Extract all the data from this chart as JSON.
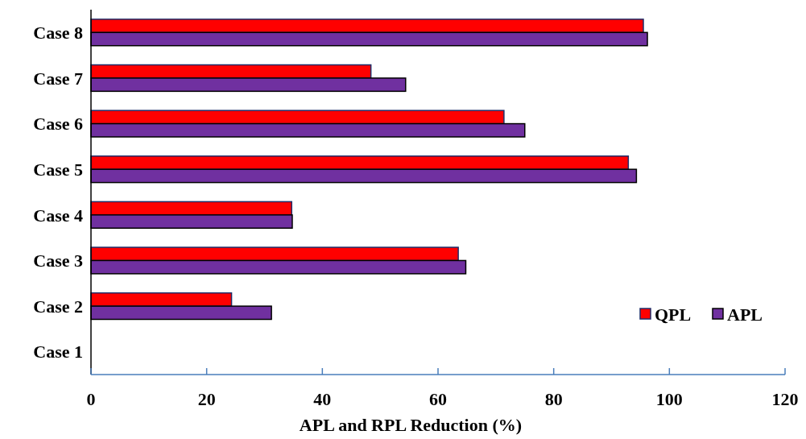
{
  "chart_data": {
    "type": "bar",
    "orientation": "horizontal",
    "xlabel": "APL and RPL Reduction (%)",
    "categories": [
      "Case 8",
      "Case 7",
      "Case 6",
      "Case 5",
      "Case 4",
      "Case 3",
      "Case 2",
      "Case 1"
    ],
    "series": [
      {
        "name": "QPL",
        "color": "#ff0000",
        "values": [
          95.5,
          48.4,
          71.4,
          92.9,
          34.7,
          63.5,
          24.3,
          0
        ]
      },
      {
        "name": "APL",
        "color": "#7030a0",
        "values": [
          96.2,
          54.4,
          75.0,
          94.3,
          34.8,
          64.8,
          31.2,
          0
        ]
      }
    ],
    "xlim": [
      0,
      120
    ],
    "xticks": [
      0,
      20,
      40,
      60,
      80,
      100,
      120
    ],
    "grid": false,
    "legend": "bottom right"
  }
}
